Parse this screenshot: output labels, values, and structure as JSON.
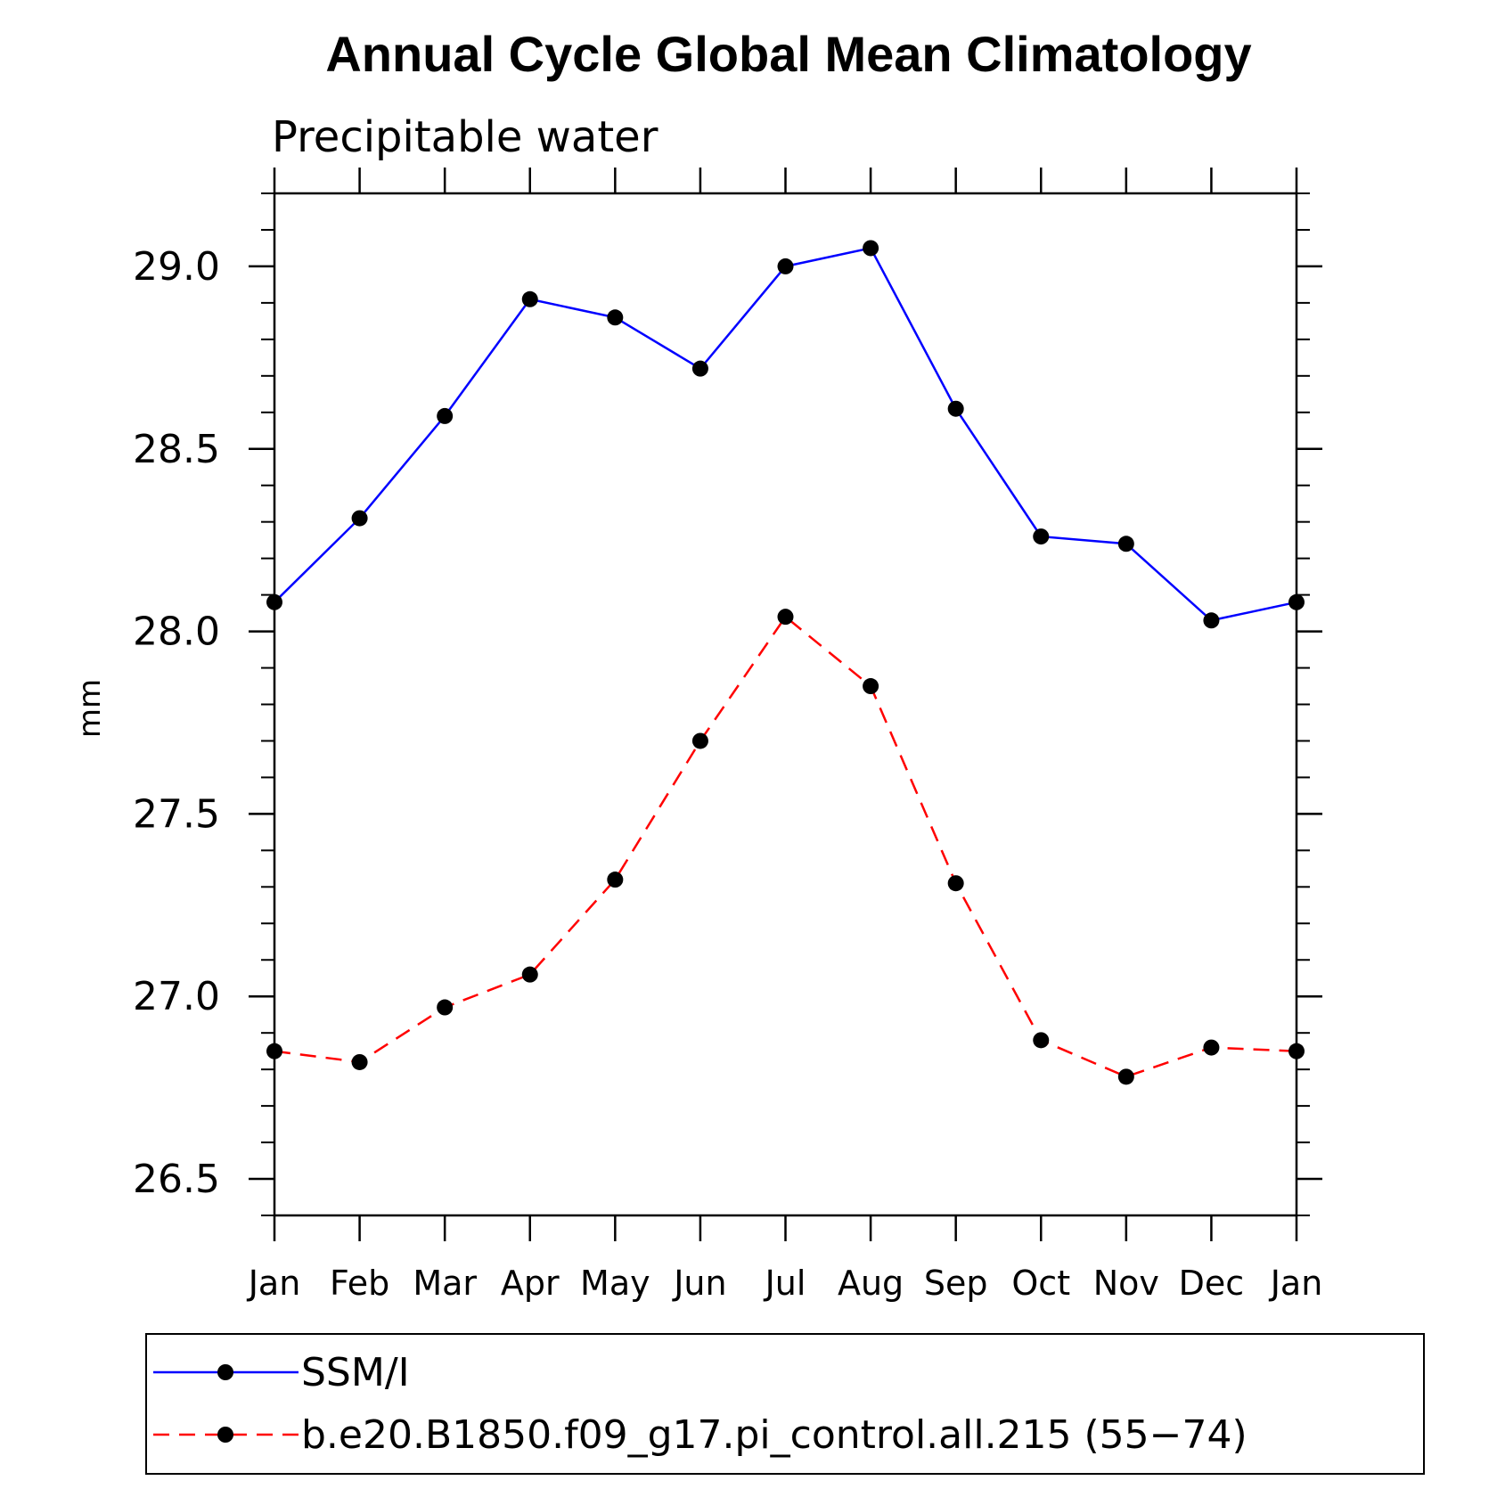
{
  "chart_data": {
    "type": "line",
    "title": "Annual Cycle Global Mean Climatology",
    "subtitle": "Precipitable water",
    "xlabel": "",
    "ylabel": "mm",
    "categories": [
      "Jan",
      "Feb",
      "Mar",
      "Apr",
      "May",
      "Jun",
      "Jul",
      "Aug",
      "Sep",
      "Oct",
      "Nov",
      "Dec",
      "Jan"
    ],
    "ylim": [
      26.4,
      29.2
    ],
    "yticks": [
      "26.5",
      "27.0",
      "27.5",
      "28.0",
      "28.5",
      "29.0"
    ],
    "grid": false,
    "legend_position": "bottom",
    "series": [
      {
        "name": "SSM/I",
        "color": "#0000ff",
        "line_style": "solid",
        "marker": "filled-circle",
        "values": [
          28.08,
          28.31,
          28.59,
          28.91,
          28.86,
          28.72,
          29.0,
          29.05,
          28.61,
          28.26,
          28.24,
          28.03,
          28.08
        ]
      },
      {
        "name": "b.e20.B1850.f09_g17.pi_control.all.215 (55−74)",
        "color": "#ff0000",
        "line_style": "dashed",
        "marker": "filled-circle",
        "values": [
          26.85,
          26.82,
          26.97,
          27.06,
          27.32,
          27.7,
          28.04,
          27.85,
          27.31,
          26.88,
          26.78,
          26.86,
          26.85
        ]
      }
    ]
  }
}
